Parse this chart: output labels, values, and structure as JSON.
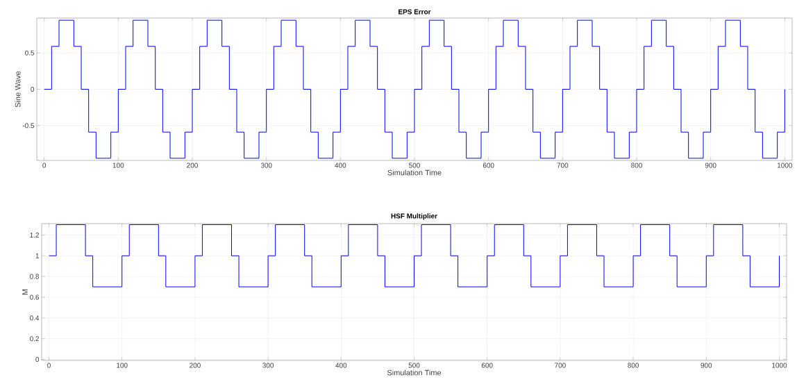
{
  "chart_data": [
    {
      "type": "step",
      "title": "EPS Error",
      "xlabel": "Simulation Time",
      "ylabel": "Sine Wave",
      "x": [
        0,
        10,
        20,
        30,
        40,
        50,
        60,
        70,
        80,
        90,
        100,
        110,
        120,
        130,
        140,
        150,
        160,
        170,
        180,
        190,
        200,
        210,
        220,
        230,
        240,
        250,
        260,
        270,
        280,
        290,
        300,
        310,
        320,
        330,
        340,
        350,
        360,
        370,
        380,
        390,
        400,
        410,
        420,
        430,
        440,
        450,
        460,
        470,
        480,
        490,
        500,
        510,
        520,
        530,
        540,
        550,
        560,
        570,
        580,
        590,
        600,
        610,
        620,
        630,
        640,
        650,
        660,
        670,
        680,
        690,
        700,
        710,
        720,
        730,
        740,
        750,
        760,
        770,
        780,
        790,
        800,
        810,
        820,
        830,
        840,
        850,
        860,
        870,
        880,
        890,
        900,
        910,
        920,
        930,
        940,
        950,
        960,
        970,
        980,
        990,
        1000
      ],
      "series": [
        {
          "color": "#0000ff",
          "values": [
            0,
            0.59,
            0.95,
            0.95,
            0.59,
            0,
            -0.59,
            -0.95,
            -0.95,
            -0.59,
            0,
            0.59,
            0.95,
            0.95,
            0.59,
            0,
            -0.59,
            -0.95,
            -0.95,
            -0.59,
            0,
            0.59,
            0.95,
            0.95,
            0.59,
            0,
            -0.59,
            -0.95,
            -0.95,
            -0.59,
            0,
            0.59,
            0.95,
            0.95,
            0.59,
            0,
            -0.59,
            -0.95,
            -0.95,
            -0.59,
            0,
            0.59,
            0.95,
            0.95,
            0.59,
            0,
            -0.59,
            -0.95,
            -0.95,
            -0.59,
            0,
            0.59,
            0.95,
            0.95,
            0.59,
            0,
            -0.59,
            -0.95,
            -0.95,
            -0.59,
            0,
            0.59,
            0.95,
            0.95,
            0.59,
            0,
            -0.59,
            -0.95,
            -0.95,
            -0.59,
            0,
            0.59,
            0.95,
            0.95,
            0.59,
            0,
            -0.59,
            -0.95,
            -0.95,
            -0.59,
            0,
            0.59,
            0.95,
            0.95,
            0.59,
            0,
            -0.59,
            -0.95,
            -0.95,
            -0.59,
            0,
            0.59,
            0.95,
            0.95,
            0.59,
            0,
            -0.59,
            -0.95,
            -0.95,
            -0.59,
            0
          ]
        }
      ],
      "xlim": [
        -10,
        1010
      ],
      "ylim": [
        -0.98,
        0.98
      ],
      "xticks": [
        0,
        100,
        200,
        300,
        400,
        500,
        600,
        700,
        800,
        900,
        1000
      ],
      "yticks": [
        -0.5,
        0,
        0.5
      ],
      "grid": true
    },
    {
      "type": "step",
      "title": "HSF Multiplier",
      "xlabel": "Simulation Time",
      "ylabel": "M",
      "x": [
        0,
        10,
        20,
        30,
        40,
        50,
        60,
        70,
        80,
        90,
        100,
        110,
        120,
        130,
        140,
        150,
        160,
        170,
        180,
        190,
        200,
        210,
        220,
        230,
        240,
        250,
        260,
        270,
        280,
        290,
        300,
        310,
        320,
        330,
        340,
        350,
        360,
        370,
        380,
        390,
        400,
        410,
        420,
        430,
        440,
        450,
        460,
        470,
        480,
        490,
        500,
        510,
        520,
        530,
        540,
        550,
        560,
        570,
        580,
        590,
        600,
        610,
        620,
        630,
        640,
        650,
        660,
        670,
        680,
        690,
        700,
        710,
        720,
        730,
        740,
        750,
        760,
        770,
        780,
        790,
        800,
        810,
        820,
        830,
        840,
        850,
        860,
        870,
        880,
        890,
        900,
        910,
        920,
        930,
        940,
        950,
        960,
        970,
        980,
        990,
        1000
      ],
      "series": [
        {
          "color": "#0000ff",
          "values": [
            1,
            1.3,
            1.3,
            1.3,
            1.3,
            1,
            0.7,
            0.7,
            0.7,
            0.7,
            1,
            1.3,
            1.3,
            1.3,
            1.3,
            1,
            0.7,
            0.7,
            0.7,
            0.7,
            1,
            1.3,
            1.3,
            1.3,
            1.3,
            1,
            0.7,
            0.7,
            0.7,
            0.7,
            1,
            1.3,
            1.3,
            1.3,
            1.3,
            1,
            0.7,
            0.7,
            0.7,
            0.7,
            1,
            1.3,
            1.3,
            1.3,
            1.3,
            1,
            0.7,
            0.7,
            0.7,
            0.7,
            1,
            1.3,
            1.3,
            1.3,
            1.3,
            1,
            0.7,
            0.7,
            0.7,
            0.7,
            1,
            1.3,
            1.3,
            1.3,
            1.3,
            1,
            0.7,
            0.7,
            0.7,
            0.7,
            1,
            1.3,
            1.3,
            1.3,
            1.3,
            1,
            0.7,
            0.7,
            0.7,
            0.7,
            1,
            1.3,
            1.3,
            1.3,
            1.3,
            1,
            0.7,
            0.7,
            0.7,
            0.7,
            1,
            1.3,
            1.3,
            1.3,
            1.3,
            1,
            0.7,
            0.7,
            0.7,
            0.7,
            1
          ]
        }
      ],
      "xlim": [
        -10,
        1010
      ],
      "ylim": [
        -0.01,
        1.31
      ],
      "xticks": [
        0,
        100,
        200,
        300,
        400,
        500,
        600,
        700,
        800,
        900,
        1000
      ],
      "yticks": [
        0,
        0.2,
        0.4,
        0.6,
        0.8,
        1,
        1.2
      ],
      "grid": true
    }
  ]
}
